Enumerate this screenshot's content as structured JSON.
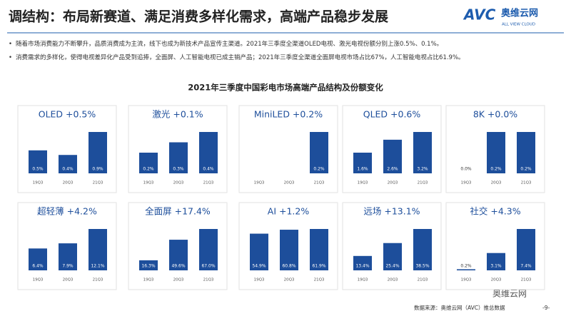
{
  "title": "调结构：布局新赛道、满足消费多样化需求，高端产品稳步发展",
  "logo": {
    "mark": "AVC",
    "name": "奥维云网",
    "tagline": "ALL VIEW CLOUD"
  },
  "bullets": [
    "随着市场消费能力不断攀升，品质消费成为主流，线下也成为新技术产品宣传主渠道。2021年三季度全渠道OLED电视、激光电视份额分别上涨0.5%、0.1%。",
    "消费需求的多样化，使得电视差异化产品受到追捧，全面屏、人工智能电视已成主销产品；2021年三季度全渠道全面屏电视市场占比67%，人工智能电视占比61.9%。"
  ],
  "charts_title": "2021年三季度中国彩电市场高端产品结构及份额变化",
  "footer": {
    "source": "数据来源：奥维云网（AVC）推总数据",
    "page": "-9-",
    "watermark": "奥维云网"
  },
  "chart_data": [
    {
      "type": "bar",
      "title": "OLED  +0.5%",
      "categories": [
        "19Q3",
        "20Q3",
        "21Q3"
      ],
      "values": [
        0.5,
        0.4,
        0.9
      ],
      "value_labels": [
        "0.5%",
        "0.4%",
        "0.9%"
      ],
      "color": "#1d4e9b"
    },
    {
      "type": "bar",
      "title": "激光  +0.1%",
      "categories": [
        "19Q3",
        "20Q3",
        "21Q3"
      ],
      "values": [
        0.2,
        0.3,
        0.4
      ],
      "value_labels": [
        "0.2%",
        "0.3%",
        "0.4%"
      ],
      "color": "#1d4e9b"
    },
    {
      "type": "bar",
      "title": "MiniLED  +0.2%",
      "categories": [
        "19Q3",
        "20Q3",
        "21Q3"
      ],
      "values": [
        null,
        null,
        0.2
      ],
      "value_labels": [
        null,
        null,
        "0.2%"
      ],
      "color": "#1d4e9b"
    },
    {
      "type": "bar",
      "title": "QLED  +0.6%",
      "categories": [
        "19Q3",
        "20Q3",
        "21Q3"
      ],
      "values": [
        1.6,
        2.6,
        3.2
      ],
      "value_labels": [
        "1.6%",
        "2.6%",
        "3.2%"
      ],
      "color": "#1d4e9b"
    },
    {
      "type": "bar",
      "title": "8K  +0.0%",
      "categories": [
        "19Q3",
        "20Q3",
        "21Q3"
      ],
      "values": [
        0.0,
        0.2,
        0.2
      ],
      "value_labels": [
        "0.0%",
        "0.2%",
        "0.2%"
      ],
      "color": "#1d4e9b"
    },
    {
      "type": "bar",
      "title": "超轻薄  +4.2%",
      "categories": [
        "19Q3",
        "20Q3",
        "21Q3"
      ],
      "values": [
        6.4,
        7.9,
        12.1
      ],
      "value_labels": [
        "6.4%",
        "7.9%",
        "12.1%"
      ],
      "color": "#1d4e9b"
    },
    {
      "type": "bar",
      "title": "全面屏  +17.4%",
      "categories": [
        "19Q3",
        "20Q3",
        "21Q3"
      ],
      "values": [
        16.3,
        49.6,
        67.0
      ],
      "value_labels": [
        "16.3%",
        "49.6%",
        "67.0%"
      ],
      "color": "#1d4e9b"
    },
    {
      "type": "bar",
      "title": "AI  +1.2%",
      "categories": [
        "19Q3",
        "20Q3",
        "21Q3"
      ],
      "values": [
        54.9,
        60.8,
        61.9
      ],
      "value_labels": [
        "54.9%",
        "60.8%",
        "61.9%"
      ],
      "color": "#1d4e9b"
    },
    {
      "type": "bar",
      "title": "远场  +13.1%",
      "categories": [
        "19Q3",
        "20Q3",
        "21Q3"
      ],
      "values": [
        13.4,
        25.4,
        38.5
      ],
      "value_labels": [
        "13.4%",
        "25.4%",
        "38.5%"
      ],
      "color": "#1d4e9b"
    },
    {
      "type": "bar",
      "title": "社交  +4.3%",
      "categories": [
        "19Q3",
        "20Q3",
        "21Q3"
      ],
      "values": [
        0.2,
        3.1,
        7.4
      ],
      "value_labels": [
        "0.2%",
        "3.1%",
        "7.4%"
      ],
      "color": "#1d4e9b"
    }
  ]
}
